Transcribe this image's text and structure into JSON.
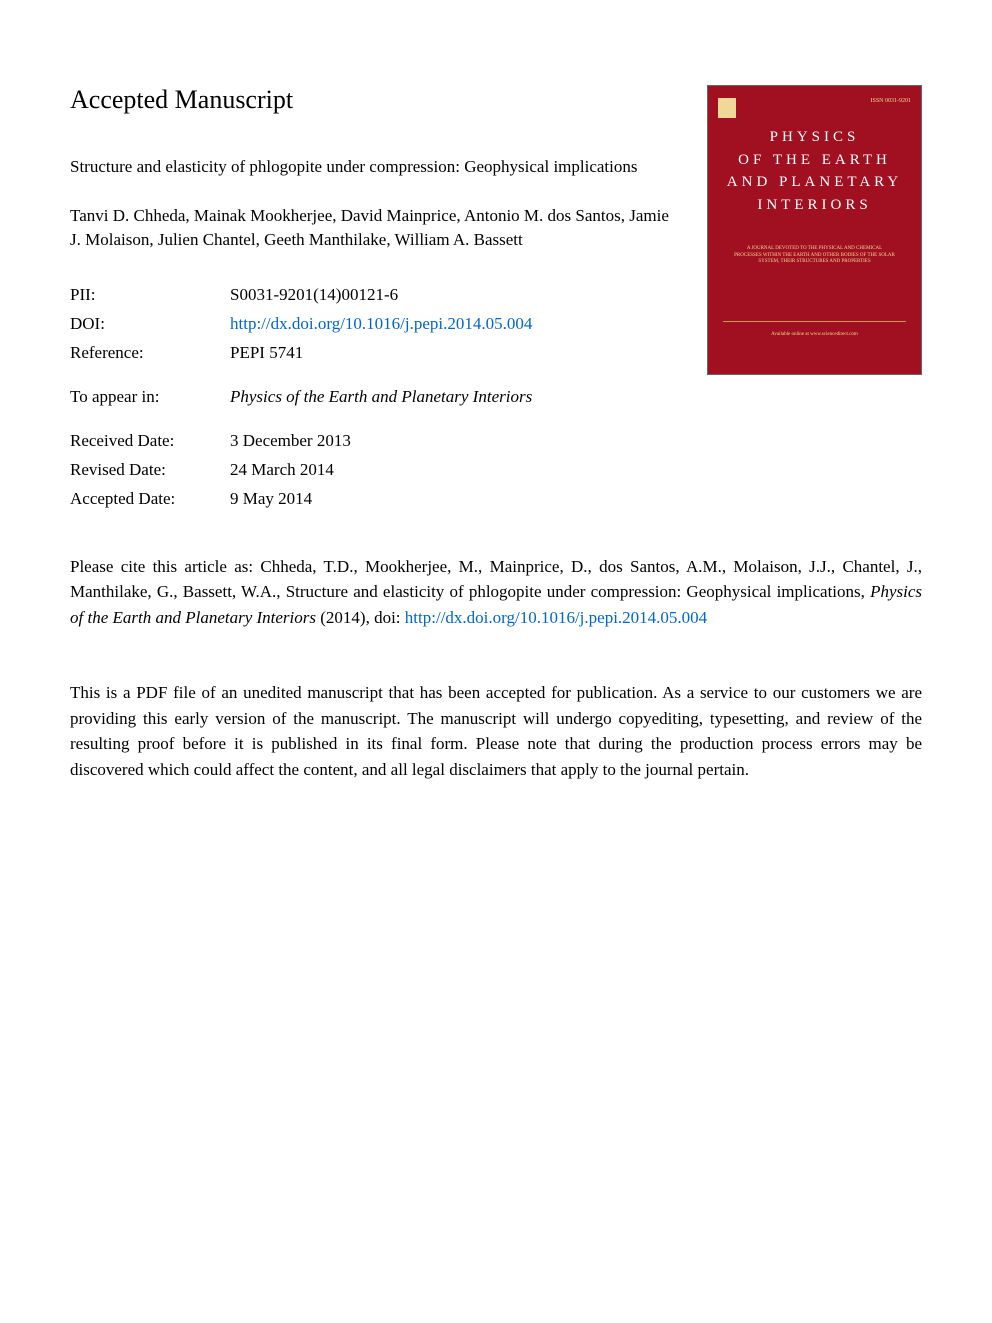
{
  "page": {
    "heading": "Accepted Manuscript",
    "article_title": "Structure and elasticity of phlogopite under compression: Geophysical implications",
    "authors": "Tanvi D. Chheda, Mainak Mookherjee, David Mainprice, Antonio M. dos Santos, Jamie J. Molaison, Julien Chantel, Geeth Manthilake, William A. Bassett"
  },
  "metadata": {
    "pii_label": "PII:",
    "pii_value": "S0031-9201(14)00121-6",
    "doi_label": "DOI:",
    "doi_value": "http://dx.doi.org/10.1016/j.pepi.2014.05.004",
    "reference_label": "Reference:",
    "reference_value": "PEPI 5741",
    "appear_label": "To appear in:",
    "appear_value": "Physics of the Earth and Planetary Interiors",
    "received_label": "Received Date:",
    "received_value": "3 December 2013",
    "revised_label": "Revised Date:",
    "revised_value": "24 March 2014",
    "accepted_label": "Accepted Date:",
    "accepted_value": "9 May 2014"
  },
  "cover": {
    "issn": "ISSN 0031-9201",
    "title_line1": "PHYSICS",
    "title_line2": "OF THE EARTH",
    "title_line3": "AND PLANETARY",
    "title_line4": "INTERIORS",
    "subtitle": "A JOURNAL DEVOTED TO THE PHYSICAL AND CHEMICAL PROCESSES WITHIN THE EARTH AND OTHER BODIES OF THE SOLAR SYSTEM, THEIR STRUCTURES AND PROPERTIES",
    "bottom_text": "Available online at www.sciencedirect.com",
    "background_color": "#a01020",
    "text_color": "#ffffff",
    "accent_color": "#f0d898"
  },
  "citation": {
    "prefix": "Please cite this article as: Chheda, T.D., Mookherjee, M., Mainprice, D., dos Santos, A.M., Molaison, J.J., Chantel, J., Manthilake, G., Bassett, W.A., Structure and elasticity of phlogopite under compression: Geophysical implications, ",
    "journal_italic": "Physics of the Earth and Planetary Interiors",
    "suffix": " (2014), doi: ",
    "link": "http://dx.doi.org/10.1016/j.pepi.2014.05.004"
  },
  "disclaimer": {
    "text": "This is a PDF file of an unedited manuscript that has been accepted for publication. As a service to our customers we are providing this early version of the manuscript. The manuscript will undergo copyediting, typesetting, and review of the resulting proof before it is published in its final form. Please note that during the production process errors may be discovered which could affect the content, and all legal disclaimers that apply to the journal pertain."
  },
  "colors": {
    "link_color": "#0066cc",
    "text_color": "#000000",
    "background": "#ffffff"
  }
}
